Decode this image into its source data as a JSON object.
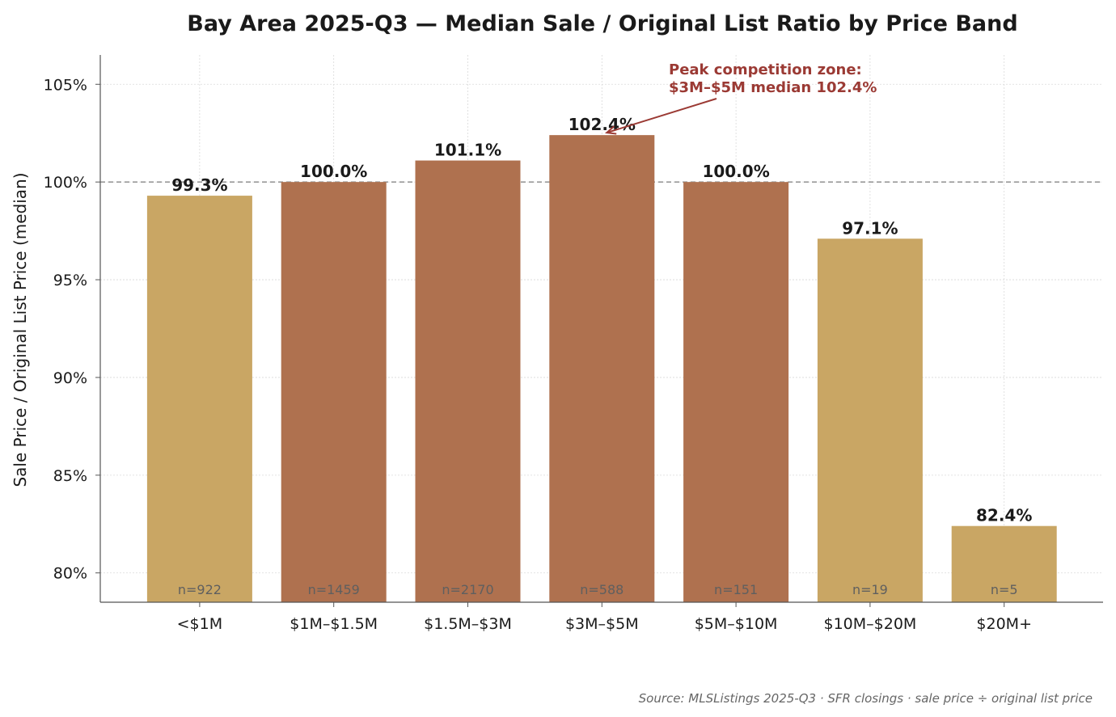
{
  "chart_data": {
    "type": "bar",
    "title": "Bay Area 2025-Q3 — Median Sale / Original List Ratio by Price Band",
    "xlabel": "",
    "ylabel": "Sale Price / Original List Price (median)",
    "ylim": [
      78.5,
      106.5
    ],
    "yticks": [
      80,
      85,
      90,
      95,
      100,
      105
    ],
    "ytick_labels": [
      "80%",
      "85%",
      "90%",
      "95%",
      "100%",
      "105%"
    ],
    "grid": true,
    "categories": [
      "<$1M",
      "$1M–$1.5M",
      "$1.5M–$3M",
      "$3M–$5M",
      "$5M–$10M",
      "$10M–$20M",
      "$20M+"
    ],
    "values": [
      99.3,
      100.0,
      101.1,
      102.4,
      100.0,
      97.1,
      82.4
    ],
    "value_labels": [
      "99.3%",
      "100.0%",
      "101.1%",
      "102.4%",
      "100.0%",
      "97.1%",
      "82.4%"
    ],
    "sample_sizes": [
      "n=922",
      "n=1459",
      "n=2170",
      "n=588",
      "n=151",
      "n=19",
      "n=5"
    ],
    "reference_line": 100,
    "colors": {
      "above_or_at_list": "#af714f",
      "below_list": "#c9a664",
      "annotation": "#9b3a34",
      "reference_line": "#999999"
    },
    "annotation": {
      "lines": [
        "Peak competition zone:",
        "$3M–$5M median 102.4%"
      ],
      "target_category": "$3M–$5M"
    },
    "source": "Source: MLSListings 2025-Q3 · SFR closings · sale price ÷ original list price"
  }
}
